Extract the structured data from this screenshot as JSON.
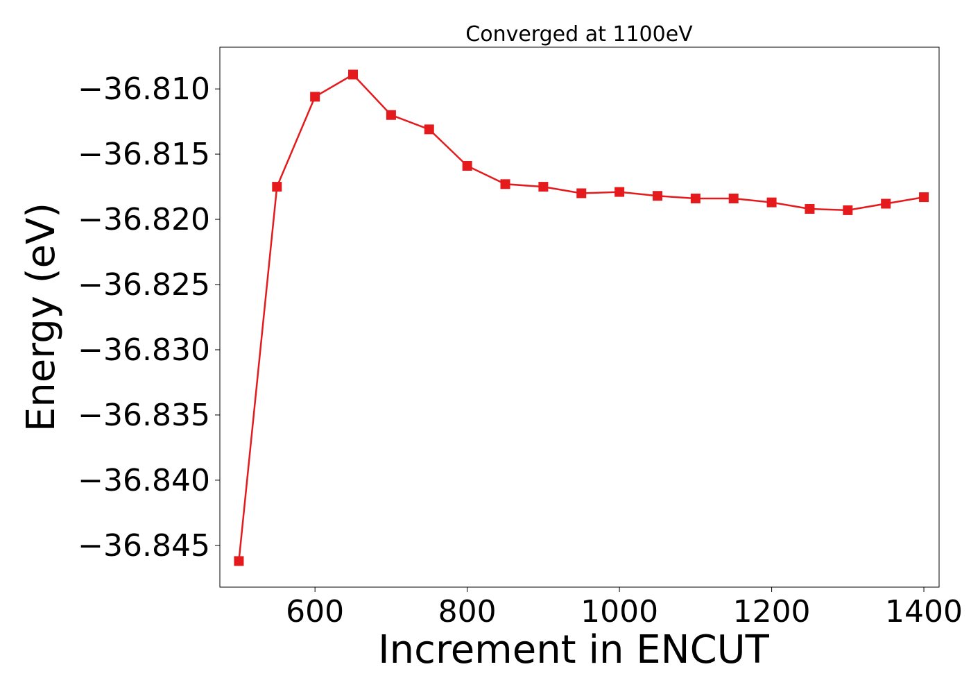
{
  "chart_data": {
    "type": "line",
    "title": "Converged at 1100eV",
    "xlabel": "Increment in ENCUT",
    "ylabel": "Energy (eV)",
    "xlim": [
      475,
      1420
    ],
    "ylim": [
      -36.8482,
      -36.8068
    ],
    "xticks": [
      600,
      800,
      1000,
      1200,
      1400
    ],
    "xtick_labels": [
      "600",
      "800",
      "1000",
      "1200",
      "1400"
    ],
    "yticks": [
      -36.845,
      -36.84,
      -36.835,
      -36.83,
      -36.825,
      -36.82,
      -36.815,
      -36.81
    ],
    "ytick_labels": [
      "−36.845",
      "−36.840",
      "−36.835",
      "−36.830",
      "−36.825",
      "−36.820",
      "−36.815",
      "−36.810"
    ],
    "grid": false,
    "series": [
      {
        "color": "#e41a1c",
        "marker": "square",
        "x": [
          500,
          550,
          600,
          650,
          700,
          750,
          800,
          850,
          900,
          950,
          1000,
          1050,
          1100,
          1150,
          1200,
          1250,
          1300,
          1350,
          1400
        ],
        "y": [
          -36.8462,
          -36.8175,
          -36.8106,
          -36.8089,
          -36.812,
          -36.8131,
          -36.8159,
          -36.8173,
          -36.8175,
          -36.818,
          -36.8179,
          -36.8182,
          -36.8184,
          -36.8184,
          -36.8187,
          -36.8192,
          -36.8193,
          -36.8188,
          -36.8183
        ]
      }
    ]
  }
}
